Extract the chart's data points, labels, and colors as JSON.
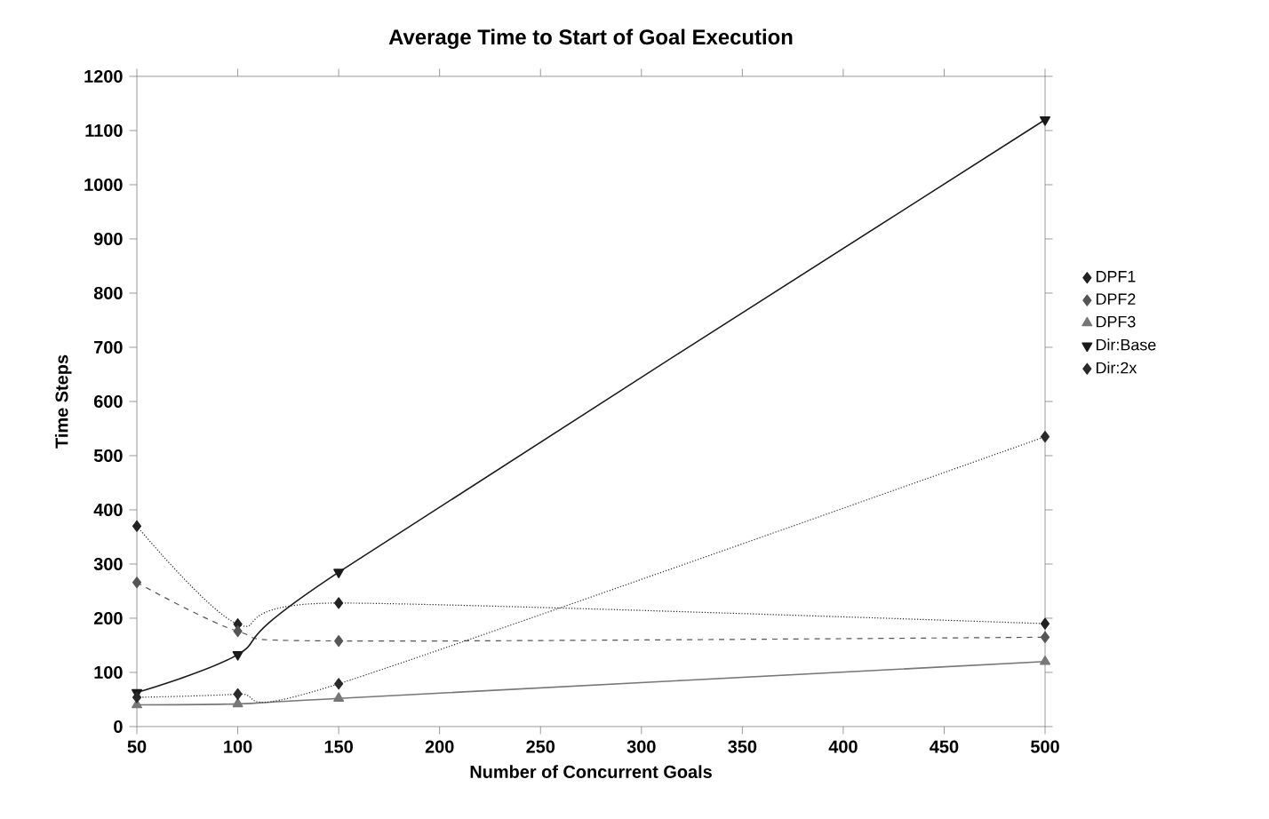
{
  "chart_data": {
    "type": "line",
    "title": "Average Time to Start of Goal Execution",
    "xlabel": "Number of Concurrent Goals",
    "ylabel": "Time Steps",
    "x": [
      50,
      100,
      150,
      500
    ],
    "xlim": [
      50,
      500
    ],
    "xticks": [
      50,
      100,
      150,
      200,
      250,
      300,
      350,
      400,
      450,
      500
    ],
    "ylim": [
      0,
      1200
    ],
    "yticks": [
      0,
      100,
      200,
      300,
      400,
      500,
      600,
      700,
      800,
      900,
      1000,
      1100,
      1200
    ],
    "legend": "right",
    "grid": false,
    "series": [
      {
        "name": "DPF1",
        "color": "#222222",
        "marker": "diamond",
        "line_style": "dotted",
        "values": [
          370,
          189,
          228,
          190
        ]
      },
      {
        "name": "DPF2",
        "color": "#555555",
        "marker": "diamond",
        "line_style": "dashed",
        "values": [
          266,
          176,
          158,
          165
        ]
      },
      {
        "name": "DPF3",
        "color": "#777777",
        "marker": "triangle",
        "line_style": "solid",
        "values": [
          40,
          42,
          52,
          120
        ]
      },
      {
        "name": "Dir:Base",
        "color": "#1a1a1a",
        "marker": "triangle down",
        "line_style": "solid",
        "values": [
          63,
          133,
          285,
          1120
        ]
      },
      {
        "name": "Dir:2x",
        "color": "#2a2a2a",
        "marker": "diamond",
        "line_style": "dotted",
        "values": [
          54,
          60,
          79,
          535
        ]
      }
    ]
  }
}
